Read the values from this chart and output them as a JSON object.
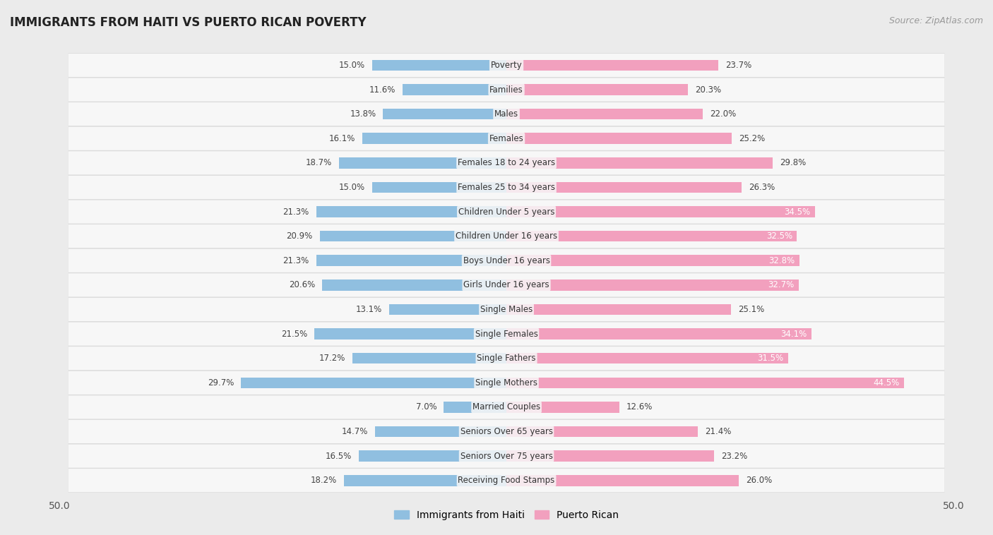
{
  "title": "IMMIGRANTS FROM HAITI VS PUERTO RICAN POVERTY",
  "source": "Source: ZipAtlas.com",
  "categories": [
    "Poverty",
    "Families",
    "Males",
    "Females",
    "Females 18 to 24 years",
    "Females 25 to 34 years",
    "Children Under 5 years",
    "Children Under 16 years",
    "Boys Under 16 years",
    "Girls Under 16 years",
    "Single Males",
    "Single Females",
    "Single Fathers",
    "Single Mothers",
    "Married Couples",
    "Seniors Over 65 years",
    "Seniors Over 75 years",
    "Receiving Food Stamps"
  ],
  "haiti_values": [
    15.0,
    11.6,
    13.8,
    16.1,
    18.7,
    15.0,
    21.3,
    20.9,
    21.3,
    20.6,
    13.1,
    21.5,
    17.2,
    29.7,
    7.0,
    14.7,
    16.5,
    18.2
  ],
  "puerto_rican_values": [
    23.7,
    20.3,
    22.0,
    25.2,
    29.8,
    26.3,
    34.5,
    32.5,
    32.8,
    32.7,
    25.1,
    34.1,
    31.5,
    44.5,
    12.6,
    21.4,
    23.2,
    26.0
  ],
  "haiti_color": "#90bfe0",
  "puerto_rican_color": "#f2a0be",
  "background_color": "#ebebeb",
  "row_bg_color": "#f7f7f7",
  "row_shadow_color": "#d8d8d8",
  "axis_max": 50.0,
  "bar_height": 0.45,
  "legend_labels": [
    "Immigrants from Haiti",
    "Puerto Rican"
  ],
  "label_fontsize": 8.5,
  "value_fontsize": 8.5,
  "title_fontsize": 12,
  "source_fontsize": 9
}
